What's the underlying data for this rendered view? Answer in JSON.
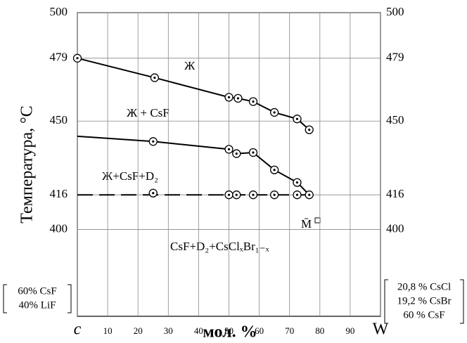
{
  "chart_data": {
    "type": "line",
    "y_label": "Температура, °C",
    "x_label": "мол. %",
    "left_composition": [
      "60% CsF",
      "40% LiF"
    ],
    "right_composition": [
      "20,8 % CsCl",
      "19,2 % CsBr",
      "60 % CsF"
    ],
    "annotations": [
      "Ж",
      "Ж + CsF",
      "Ж+CsF+D₂",
      "CsF+D₂+CsClₓBr₁₋ₓ",
      "M̄"
    ],
    "xlim": [
      0,
      100
    ],
    "ylim": [
      360,
      500
    ],
    "xticks": [
      {
        "value": 0,
        "label": "c"
      },
      10,
      20,
      30,
      40,
      50,
      60,
      70,
      80,
      90,
      {
        "value": 100,
        "label": "W"
      }
    ],
    "yticks": [
      400,
      416,
      450,
      479,
      500
    ],
    "grid": true,
    "color": "#000000",
    "series": [
      {
        "x": [
          0,
          25.5,
          50,
          53,
          58,
          65,
          72.5,
          76.5
        ],
        "values": [
          479,
          470,
          461,
          460.5,
          459,
          454,
          451,
          446
        ]
      },
      {
        "x": [
          0,
          25,
          50,
          52.5,
          58,
          65,
          72.5,
          76.5
        ],
        "values": [
          443,
          440.6,
          437,
          435,
          435.5,
          427.5,
          421.7,
          416
        ]
      },
      {
        "x": [
          0,
          76.5
        ],
        "values": [
          416,
          416
        ],
        "dashed": true
      }
    ],
    "points": {
      "x": [
        0,
        25.5,
        50,
        53,
        58,
        65,
        72.5,
        76.5,
        25,
        50,
        52.5,
        58,
        65,
        72.5,
        76.5,
        25,
        50,
        52.5,
        58,
        65,
        72.5
      ],
      "values": [
        479,
        470,
        461,
        460.5,
        459,
        454,
        451,
        446,
        440.6,
        437,
        435,
        435.5,
        427.5,
        421.7,
        416,
        416.8,
        416,
        416,
        416,
        416,
        416
      ]
    }
  }
}
